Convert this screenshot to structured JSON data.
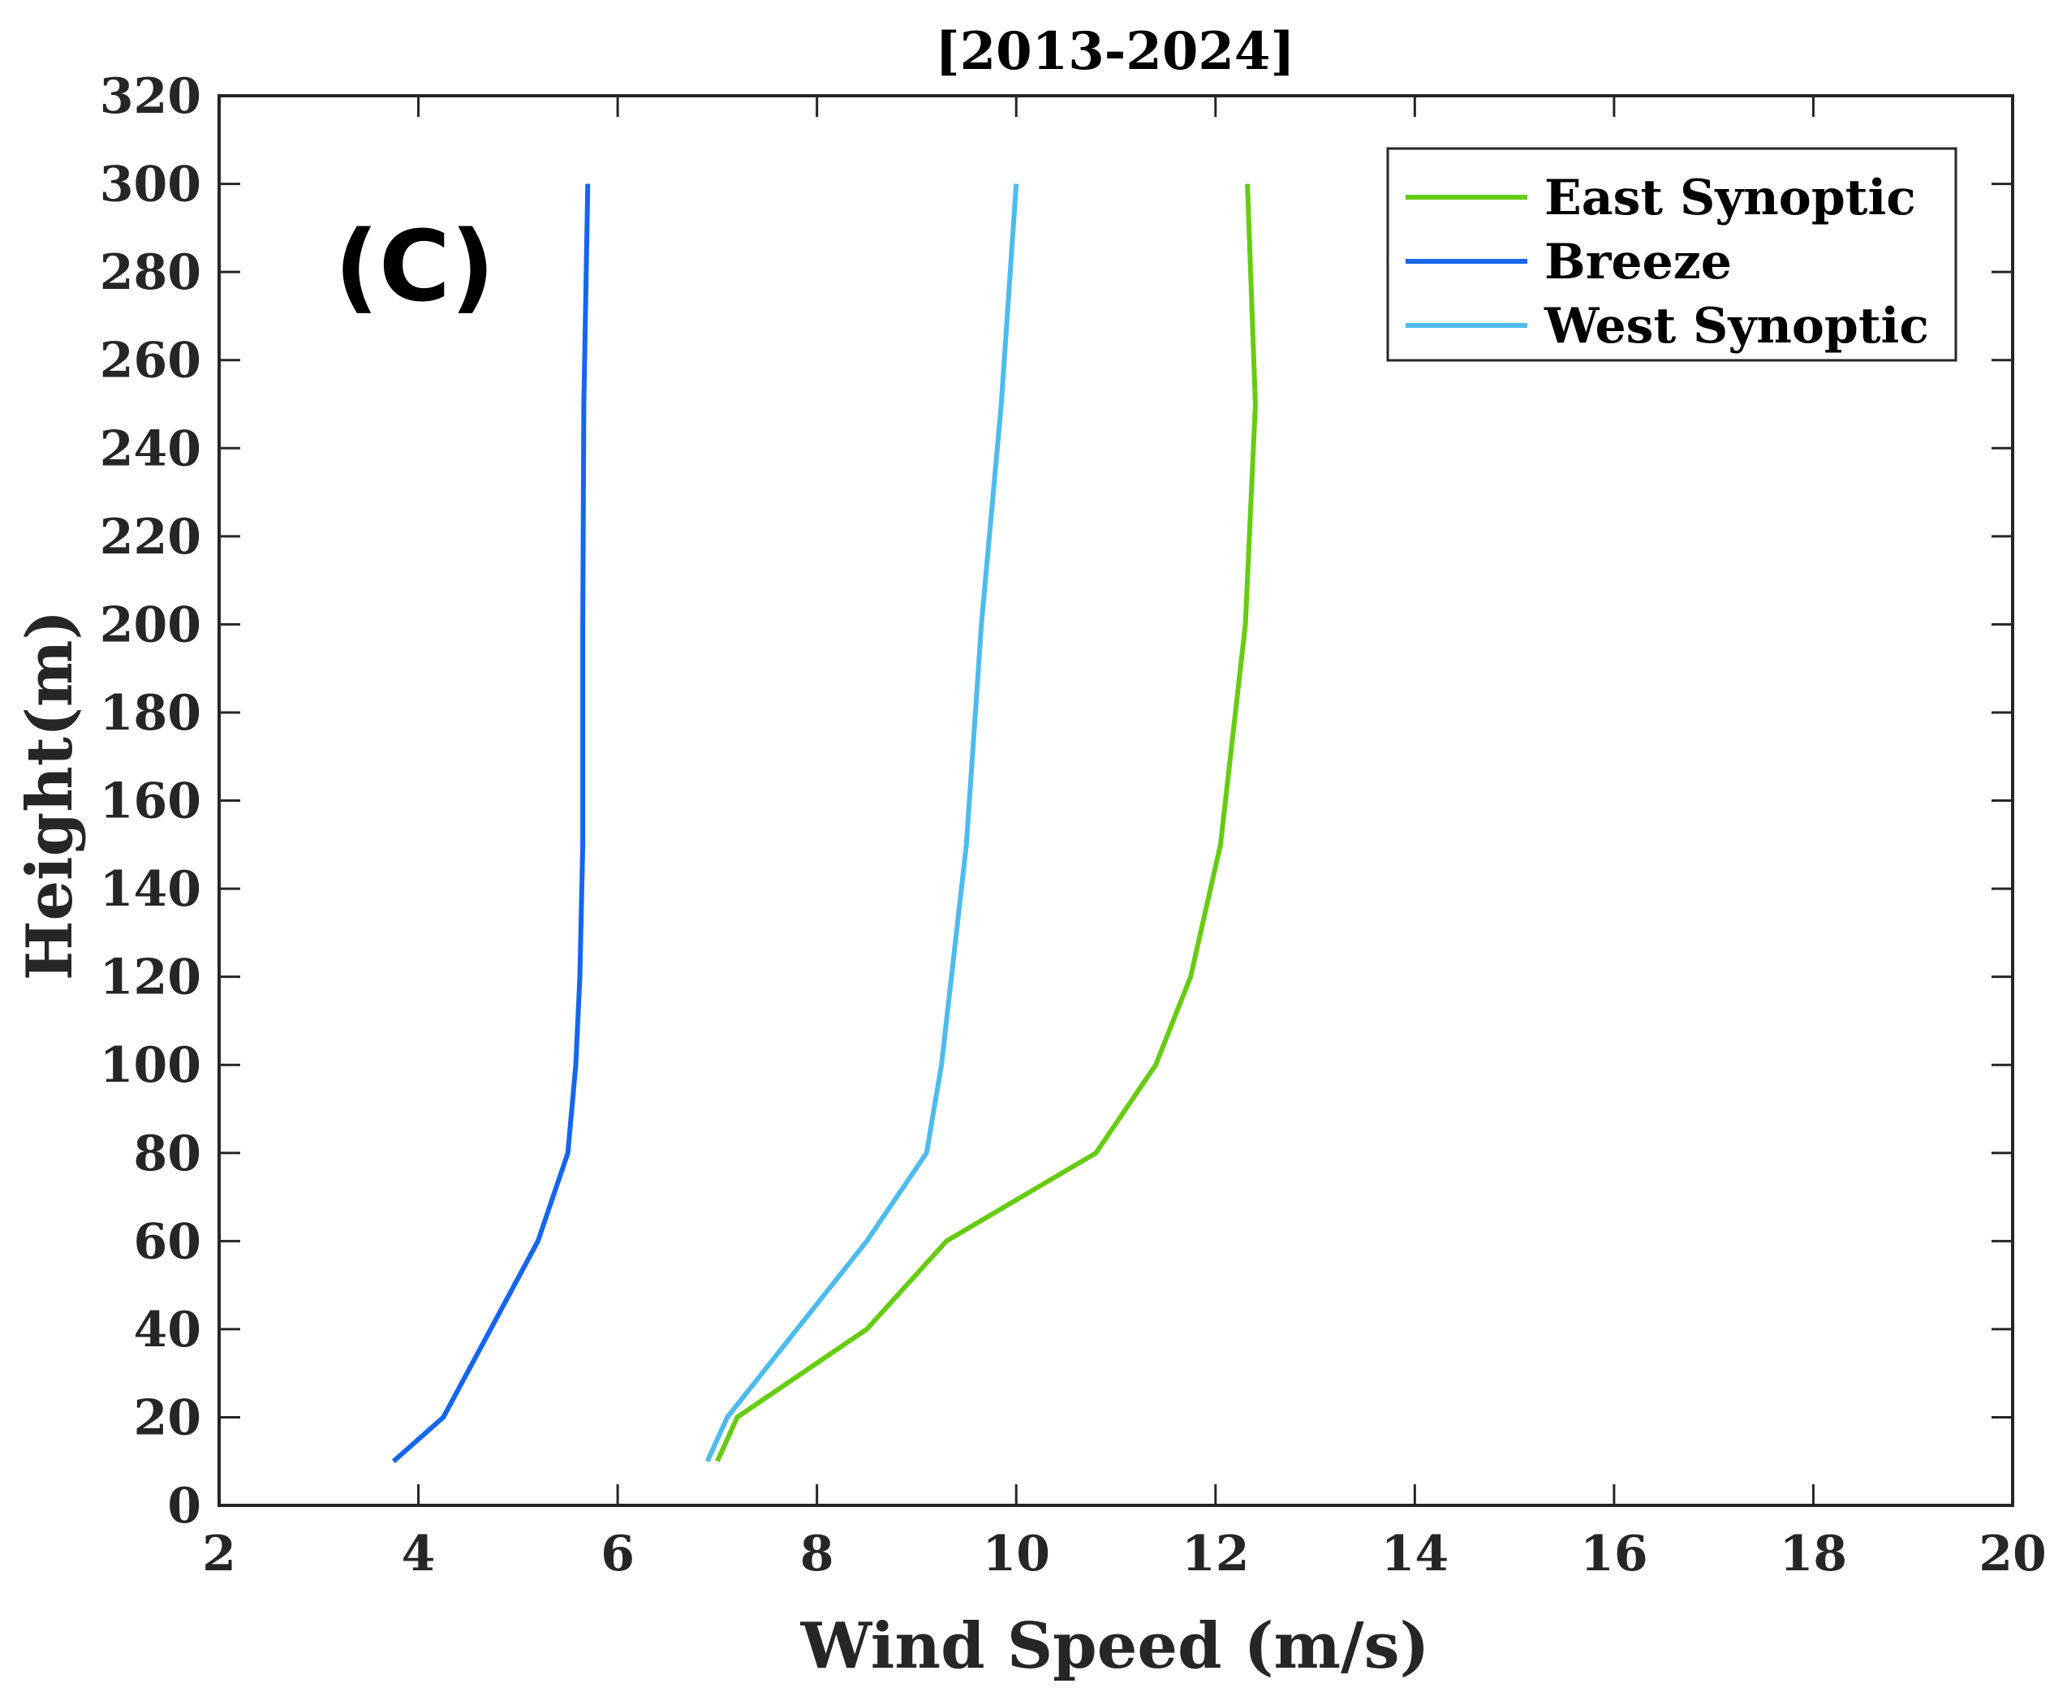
{
  "chart_data": {
    "type": "line",
    "title": "[2013-2024]",
    "panel_label": "(C)",
    "xlabel": "Wind Speed (m/s)",
    "ylabel": "Height(m)",
    "xlim": [
      2,
      20
    ],
    "ylim": [
      0,
      320
    ],
    "xticks": [
      2,
      4,
      6,
      8,
      10,
      12,
      14,
      16,
      18,
      20
    ],
    "yticks": [
      0,
      20,
      40,
      60,
      80,
      100,
      120,
      140,
      160,
      180,
      200,
      220,
      240,
      260,
      280,
      300,
      320
    ],
    "grid": false,
    "legend_position": "top-right",
    "series": [
      {
        "name": "East Synoptic",
        "color": "#66cc11",
        "points": [
          {
            "x": 7.0,
            "y": 10
          },
          {
            "x": 7.2,
            "y": 20
          },
          {
            "x": 8.5,
            "y": 40
          },
          {
            "x": 9.3,
            "y": 60
          },
          {
            "x": 10.8,
            "y": 80
          },
          {
            "x": 11.4,
            "y": 100
          },
          {
            "x": 11.75,
            "y": 120
          },
          {
            "x": 12.05,
            "y": 150
          },
          {
            "x": 12.3,
            "y": 200
          },
          {
            "x": 12.4,
            "y": 250
          },
          {
            "x": 12.32,
            "y": 300
          }
        ]
      },
      {
        "name": "Breeze",
        "color": "#1566ee",
        "points": [
          {
            "x": 3.75,
            "y": 10
          },
          {
            "x": 4.25,
            "y": 20
          },
          {
            "x": 5.2,
            "y": 60
          },
          {
            "x": 5.5,
            "y": 80
          },
          {
            "x": 5.58,
            "y": 100
          },
          {
            "x": 5.62,
            "y": 120
          },
          {
            "x": 5.65,
            "y": 150
          },
          {
            "x": 5.65,
            "y": 200
          },
          {
            "x": 5.66,
            "y": 250
          },
          {
            "x": 5.7,
            "y": 300
          }
        ]
      },
      {
        "name": "West Synoptic",
        "color": "#4dbbee",
        "points": [
          {
            "x": 6.9,
            "y": 10
          },
          {
            "x": 7.1,
            "y": 20
          },
          {
            "x": 7.8,
            "y": 40
          },
          {
            "x": 8.5,
            "y": 60
          },
          {
            "x": 9.1,
            "y": 80
          },
          {
            "x": 9.25,
            "y": 100
          },
          {
            "x": 9.35,
            "y": 120
          },
          {
            "x": 9.5,
            "y": 150
          },
          {
            "x": 9.65,
            "y": 200
          },
          {
            "x": 9.85,
            "y": 250
          },
          {
            "x": 10.0,
            "y": 300
          }
        ]
      }
    ]
  }
}
